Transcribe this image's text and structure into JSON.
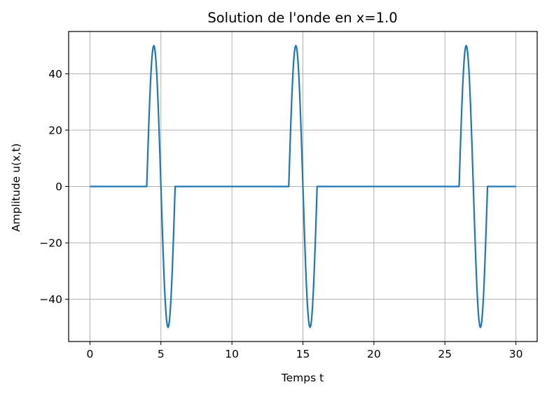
{
  "chart_data": {
    "type": "line",
    "title": "Solution de l'onde en x=1.0",
    "xlabel": "Temps t",
    "ylabel": "Amplitude u(x,t)",
    "xlim": [
      -1.5,
      31.5
    ],
    "ylim": [
      -55,
      55
    ],
    "xticks": [
      0,
      5,
      10,
      15,
      20,
      25,
      30
    ],
    "yticks": [
      -40,
      -20,
      0,
      20,
      40
    ],
    "ytick_labels": [
      "−40",
      "−20",
      "0",
      "20",
      "40"
    ],
    "grid": true,
    "color": "#1f77b4",
    "series": [
      {
        "x": [
          0,
          4.0,
          4.05,
          4.1,
          4.15,
          4.2,
          4.25,
          4.3,
          4.35,
          4.4,
          4.45,
          4.5,
          4.55,
          4.6,
          4.65,
          4.7,
          4.75,
          4.8,
          4.85,
          4.9,
          4.95,
          5.0,
          5.05,
          5.1,
          5.15,
          5.2,
          5.25,
          5.3,
          5.35,
          5.4,
          5.45,
          5.5,
          5.55,
          5.6,
          5.65,
          5.7,
          5.75,
          5.8,
          5.85,
          5.9,
          5.95,
          6.0,
          14.0,
          14.05,
          14.1,
          14.15,
          14.2,
          14.25,
          14.3,
          14.35,
          14.4,
          14.45,
          14.5,
          14.55,
          14.6,
          14.65,
          14.7,
          14.75,
          14.8,
          14.85,
          14.9,
          14.95,
          15.0,
          15.05,
          15.1,
          15.15,
          15.2,
          15.25,
          15.3,
          15.35,
          15.4,
          15.45,
          15.5,
          15.55,
          15.6,
          15.65,
          15.7,
          15.75,
          15.8,
          15.85,
          15.9,
          15.95,
          16.0,
          26.0,
          26.05,
          26.1,
          26.15,
          26.2,
          26.25,
          26.3,
          26.35,
          26.4,
          26.45,
          26.5,
          26.55,
          26.6,
          26.65,
          26.7,
          26.75,
          26.8,
          26.85,
          26.9,
          26.95,
          27.0,
          27.05,
          27.1,
          27.15,
          27.2,
          27.25,
          27.3,
          27.35,
          27.4,
          27.45,
          27.5,
          27.55,
          27.6,
          27.65,
          27.7,
          27.75,
          27.8,
          27.85,
          27.9,
          27.95,
          28.0,
          30
        ],
        "y": [
          0,
          0,
          7.8,
          15.5,
          22.7,
          29.4,
          35.4,
          40.5,
          44.6,
          47.6,
          49.4,
          50.0,
          49.4,
          47.6,
          44.6,
          40.5,
          35.4,
          29.4,
          22.7,
          15.5,
          7.8,
          0,
          -7.8,
          -15.5,
          -22.7,
          -29.4,
          -35.4,
          -40.5,
          -44.6,
          -47.6,
          -49.4,
          -50.0,
          -49.4,
          -47.6,
          -44.6,
          -40.5,
          -35.4,
          -29.4,
          -22.7,
          -15.5,
          -7.8,
          0,
          0,
          7.8,
          15.5,
          22.7,
          29.4,
          35.4,
          40.5,
          44.6,
          47.6,
          49.4,
          50.0,
          49.4,
          47.6,
          44.6,
          40.5,
          35.4,
          29.4,
          22.7,
          15.5,
          7.8,
          0,
          -7.8,
          -15.5,
          -22.7,
          -29.4,
          -35.4,
          -40.5,
          -44.6,
          -47.6,
          -49.4,
          -50.0,
          -49.4,
          -47.6,
          -44.6,
          -40.5,
          -35.4,
          -29.4,
          -22.7,
          -15.5,
          -7.8,
          0,
          0,
          7.8,
          15.5,
          22.7,
          29.4,
          35.4,
          40.5,
          44.6,
          47.6,
          49.4,
          50.0,
          49.4,
          47.6,
          44.6,
          40.5,
          35.4,
          29.4,
          22.7,
          15.5,
          7.8,
          0,
          -7.8,
          -15.5,
          -22.7,
          -29.4,
          -35.4,
          -40.5,
          -44.6,
          -47.6,
          -49.4,
          -50.0,
          -49.4,
          -47.6,
          -44.6,
          -40.5,
          -35.4,
          -29.4,
          -22.7,
          -15.5,
          -7.8,
          0,
          0
        ]
      }
    ]
  }
}
